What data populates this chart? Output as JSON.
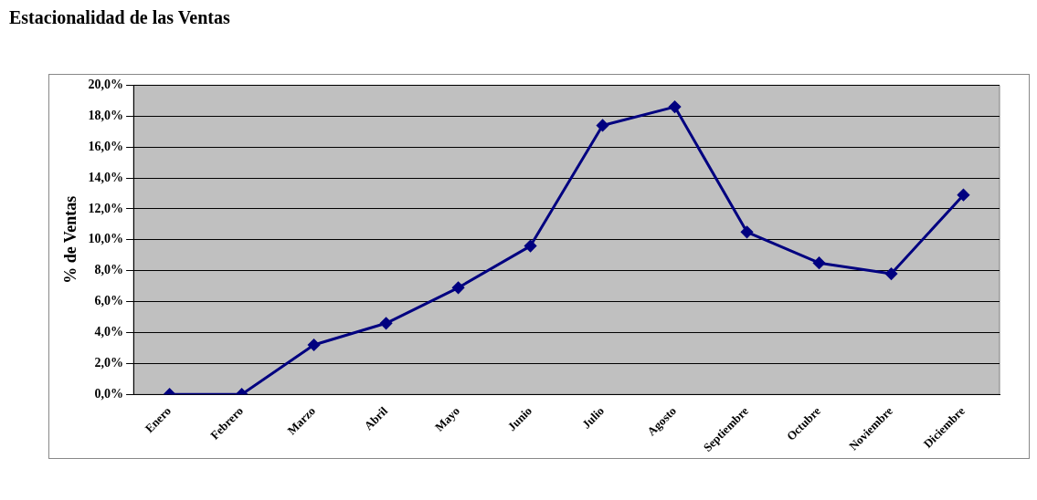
{
  "chart_data": {
    "type": "line",
    "title": "Estacionalidad de las Ventas",
    "ylabel": "% de Ventas",
    "categories": [
      "Enero",
      "Febrero",
      "Marzo",
      "Abril",
      "Mayo",
      "Junio",
      "Julio",
      "Agosto",
      "Septiembre",
      "Octubre",
      "Noviembre",
      "Diciembre"
    ],
    "series": [
      {
        "color": "#000080",
        "values": [
          0,
          0,
          3.2,
          4.6,
          6.9,
          9.6,
          17.4,
          18.6,
          10.5,
          8.5,
          7.8,
          12.9
        ]
      }
    ],
    "ylim": [
      0,
      20
    ],
    "yticks": [
      {
        "value": 0,
        "label": "0,0%"
      },
      {
        "value": 2,
        "label": "2,0%"
      },
      {
        "value": 4,
        "label": "4,0%"
      },
      {
        "value": 6,
        "label": "6,0%"
      },
      {
        "value": 8,
        "label": "8,0%"
      },
      {
        "value": 10,
        "label": "10,0%"
      },
      {
        "value": 12,
        "label": "12,0%"
      },
      {
        "value": 14,
        "label": "14,0%"
      },
      {
        "value": 16,
        "label": "16,0%"
      },
      {
        "value": 18,
        "label": "18,0%"
      },
      {
        "value": 20,
        "label": "20,0%"
      }
    ],
    "grid": "y",
    "legend": false,
    "marker": "diamond",
    "line_style": "solid"
  }
}
